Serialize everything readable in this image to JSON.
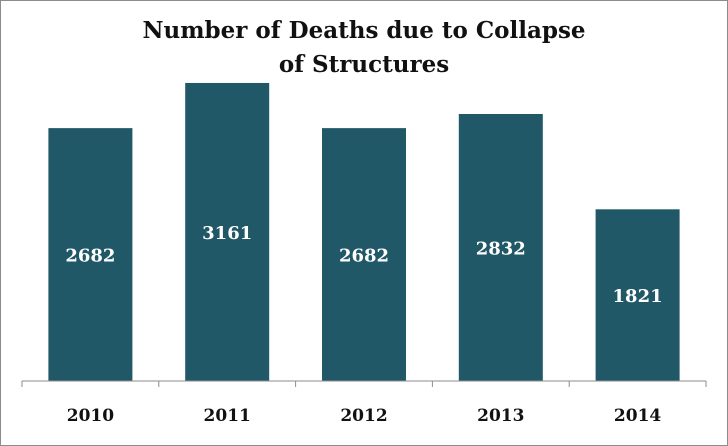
{
  "chart_data": {
    "type": "bar",
    "title_lines": [
      "Number of Deaths due to Collapse",
      "of Structures"
    ],
    "categories": [
      "2010",
      "2011",
      "2012",
      "2013",
      "2014"
    ],
    "values": [
      2682,
      3161,
      2682,
      2832,
      1821
    ],
    "data_labels": [
      "2682",
      "3161",
      "2682",
      "2832",
      "1821"
    ],
    "bar_color": "#215868",
    "label_color": "#ffffff",
    "grid": false,
    "legend": "none"
  }
}
